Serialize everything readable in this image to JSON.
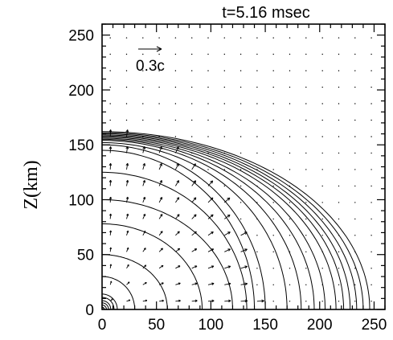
{
  "chart_data": {
    "type": "contour_vector",
    "title": "t=5.16  msec",
    "xlabel": "",
    "ylabel": "Z(km)",
    "xlim": [
      0,
      260
    ],
    "ylim": [
      0,
      260
    ],
    "x_ticks": [
      0,
      50,
      100,
      150,
      200,
      250
    ],
    "y_ticks": [
      0,
      50,
      100,
      150,
      200,
      250
    ],
    "x_tick_labels": [
      "0",
      "50",
      "100",
      "150",
      "200",
      "250"
    ],
    "y_tick_labels": [
      "0",
      "50",
      "100",
      "150",
      "200",
      "250"
    ],
    "grid": false,
    "vector_legend": {
      "label": "0.3c",
      "speed_c": 0.3
    },
    "contours": [
      {
        "r_equator": 2,
        "r_pole": 2
      },
      {
        "r_equator": 4,
        "r_pole": 4
      },
      {
        "r_equator": 6,
        "r_pole": 6
      },
      {
        "r_equator": 8,
        "r_pole": 8
      },
      {
        "r_equator": 11,
        "r_pole": 11
      },
      {
        "r_equator": 14,
        "r_pole": 14
      },
      {
        "r_equator": 30,
        "r_pole": 30
      },
      {
        "r_equator": 60,
        "r_pole": 50
      },
      {
        "r_equator": 92,
        "r_pole": 78
      },
      {
        "r_equator": 120,
        "r_pole": 100
      },
      {
        "r_equator": 133,
        "r_pole": 125
      },
      {
        "r_equator": 140,
        "r_pole": 145
      },
      {
        "r_equator": 150,
        "r_pole": 150
      },
      {
        "r_equator": 170,
        "r_pole": 152
      },
      {
        "r_equator": 183,
        "r_pole": 154
      },
      {
        "r_equator": 195,
        "r_pole": 155
      },
      {
        "r_equator": 205,
        "r_pole": 156
      },
      {
        "r_equator": 215,
        "r_pole": 157
      },
      {
        "r_equator": 222,
        "r_pole": 158
      },
      {
        "r_equator": 228,
        "r_pole": 159
      },
      {
        "r_equator": 234,
        "r_pole": 160
      },
      {
        "r_equator": 240,
        "r_pole": 161
      },
      {
        "r_equator": 246,
        "r_pole": 162
      }
    ],
    "shock_front": {
      "r_equator": 140,
      "r_pole": 160
    },
    "velocity_field": {
      "grid_spacing_km": 15,
      "direction": "radial outward",
      "speed_behind_shock_c": 0.09,
      "speed_ahead_of_shock": "near zero"
    }
  }
}
